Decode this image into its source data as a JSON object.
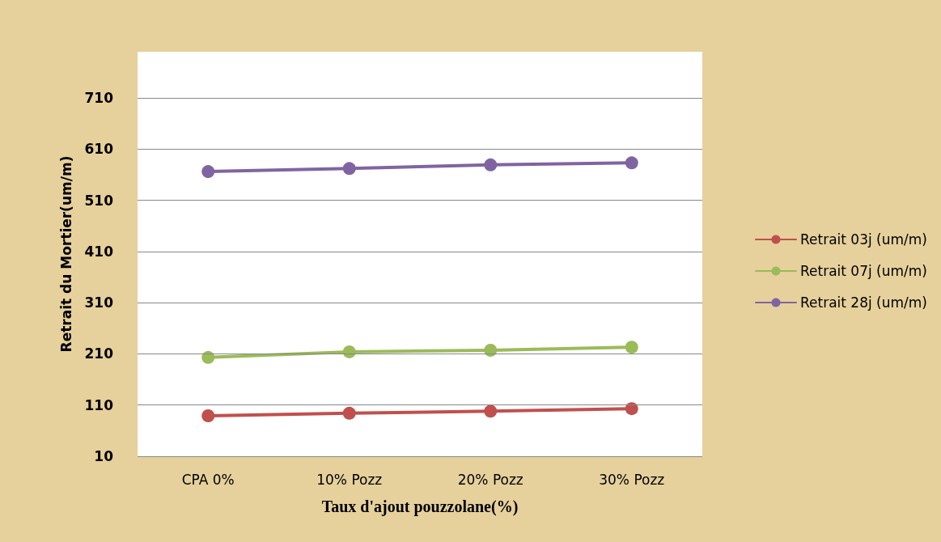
{
  "chart_data": {
    "type": "line",
    "xlabel": "Taux d'ajout pouzzolane(%)",
    "ylabel": "Retrait du Mortier(um/m)",
    "categories": [
      "CPA 0%",
      "10% Pozz",
      "20% Pozz",
      "30% Pozz"
    ],
    "series": [
      {
        "name": "Retrait 03j (um/m)",
        "color": "#c0504d",
        "values": [
          89,
          94,
          98,
          103
        ]
      },
      {
        "name": "Retrait 07j (um/m)",
        "color": "#9bbb59",
        "values": [
          203,
          214,
          217,
          223
        ]
      },
      {
        "name": "Retrait 28j (um/m)",
        "color": "#8064a2",
        "values": [
          566,
          572,
          579,
          583
        ]
      }
    ],
    "ylim": [
      10,
      800
    ],
    "yticks": [
      10,
      110,
      210,
      310,
      410,
      510,
      610,
      710
    ],
    "grid": "y",
    "legend": "right",
    "marker": "circle",
    "line_style": "solid"
  }
}
